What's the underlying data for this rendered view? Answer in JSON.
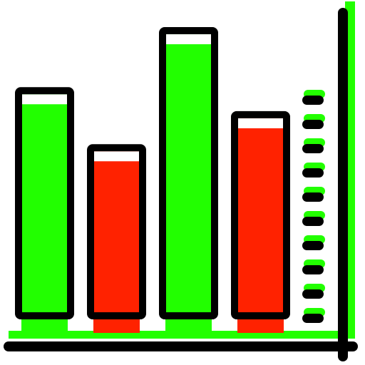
{
  "icon": {
    "name": "bar-chart-icon",
    "colors": {
      "outline": "#000000",
      "positive": "#22ff00",
      "negative": "#ff2200",
      "highlight": "#ffffff",
      "background": "#ffffff"
    },
    "bars": [
      {
        "name": "bar-1",
        "color": "positive",
        "level": 0.75
      },
      {
        "name": "bar-2",
        "color": "negative",
        "level": 0.56
      },
      {
        "name": "bar-3",
        "color": "positive",
        "level": 0.95
      },
      {
        "name": "bar-4",
        "color": "negative",
        "level": 0.67
      }
    ],
    "axis_ticks": 10
  }
}
